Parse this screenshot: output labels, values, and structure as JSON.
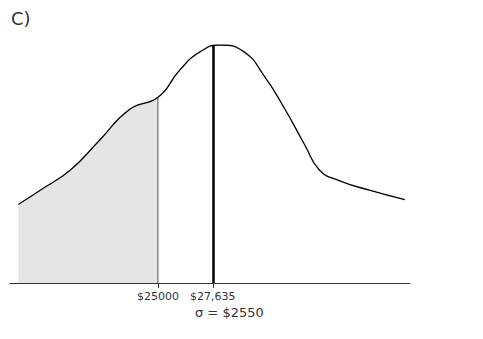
{
  "chart_data": {
    "type": "line",
    "title": "C)",
    "x": [
      18300,
      19350,
      20800,
      22200,
      23650,
      25000,
      26050,
      27000,
      27950,
      29150,
      30100,
      31100,
      32050,
      32750,
      33700,
      35150,
      36850
    ],
    "values": [
      33,
      39,
      47.5,
      60,
      73,
      78,
      89.5,
      97,
      100,
      97,
      87,
      73,
      58,
      47.5,
      43,
      39,
      35
    ],
    "color": "#000000",
    "xlim": [
      17900,
      37100
    ],
    "xticks": [
      {
        "value": 25000,
        "label": "$25000"
      },
      {
        "value": 27635,
        "label": "$27,635"
      }
    ],
    "ylim": [
      0,
      100
    ],
    "tick_labels": "x",
    "shade_below": 25000,
    "mean": 27635,
    "annotations": [
      "σ = $2550"
    ]
  }
}
